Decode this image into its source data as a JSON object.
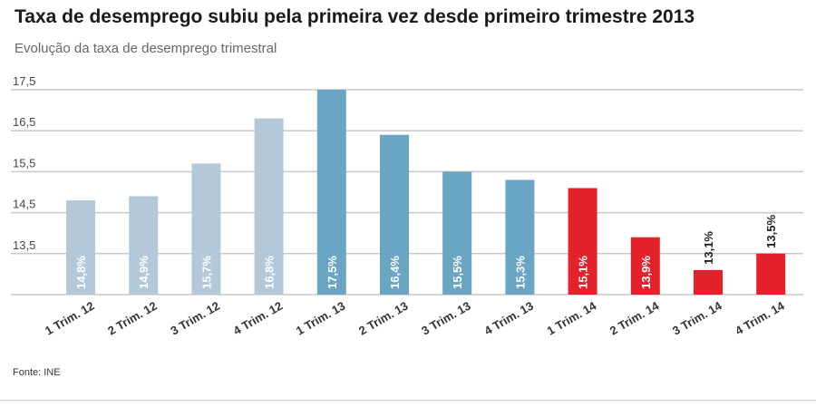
{
  "header": {
    "title": "Taxa de desemprego subiu pela primeira vez desde primeiro trimestre 2013",
    "subtitle": "Evolução da taxa de desemprego trimestral"
  },
  "footer": {
    "source": "Fonte: INE"
  },
  "colors": {
    "light_blue": "#b3c9d9",
    "steel_blue": "#6aa5c3",
    "red": "#e4222b",
    "grid": "#c8c8c8",
    "tick_text": "#444444",
    "label_in_bar": "#ffffff",
    "label_above": "#222222"
  },
  "chart_data": {
    "type": "bar",
    "title": "Taxa de desemprego subiu pela primeira vez desde primeiro trimestre 2013",
    "subtitle": "Evolução da taxa de desemprego trimestral",
    "categories": [
      "1 Trim. 12",
      "2 Trim. 12",
      "3 Trim. 12",
      "4 Trim. 12",
      "1 Trim. 13",
      "2 Trim. 13",
      "3 Trim. 13",
      "4 Trim. 13",
      "1 Trim. 14",
      "2 Trim. 14",
      "3 Trim. 14",
      "4 Trim. 14"
    ],
    "values": [
      14.8,
      14.9,
      15.7,
      16.8,
      17.5,
      16.4,
      15.5,
      15.3,
      15.1,
      13.9,
      13.1,
      13.5
    ],
    "data_labels": [
      "14,8%",
      "14,9%",
      "15,7%",
      "16,8%",
      "17,5%",
      "16,4%",
      "15,5%",
      "15,3%",
      "15,1%",
      "13,9%",
      "13,1%",
      "13,5%"
    ],
    "bar_colors": [
      "#b3c9d9",
      "#b3c9d9",
      "#b3c9d9",
      "#b3c9d9",
      "#6aa5c3",
      "#6aa5c3",
      "#6aa5c3",
      "#6aa5c3",
      "#e4222b",
      "#e4222b",
      "#e4222b",
      "#e4222b"
    ],
    "label_position": [
      "inside",
      "inside",
      "inside",
      "inside",
      "inside",
      "inside",
      "inside",
      "inside",
      "inside",
      "inside",
      "above",
      "above"
    ],
    "yticks": [
      13.5,
      14.5,
      15.5,
      16.5,
      17.5
    ],
    "ytick_labels": [
      "13,5",
      "14,5",
      "15,5",
      "16,5",
      "17,5"
    ],
    "ylim": [
      12.5,
      17.5
    ],
    "xlabel": "",
    "ylabel": "",
    "grid": true
  }
}
